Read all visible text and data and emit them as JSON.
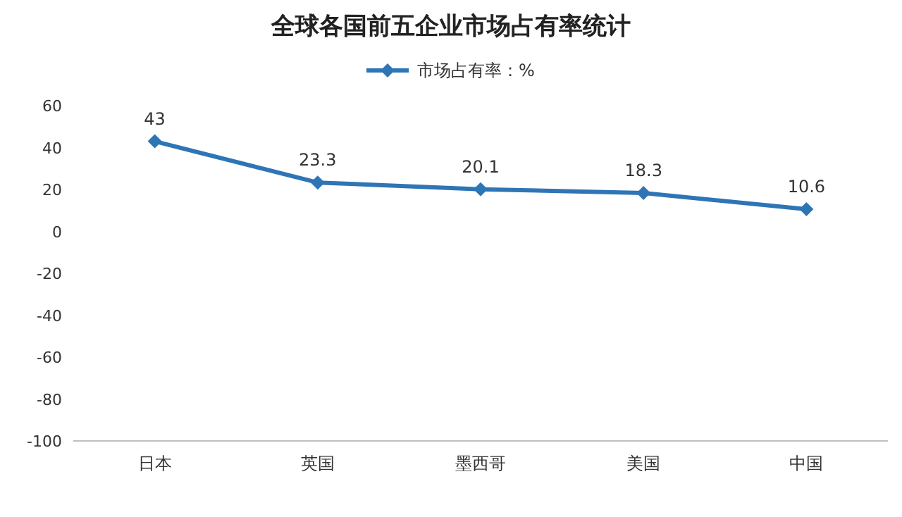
{
  "chart_data": {
    "type": "line",
    "title": "全球各国前五企业市场占有率统计",
    "categories": [
      "日本",
      "英国",
      "墨西哥",
      "美国",
      "中国"
    ],
    "series": [
      {
        "name": "市场占有率：%",
        "color": "#2e75b6",
        "values": [
          43,
          23.3,
          20.1,
          18.3,
          10.6
        ]
      }
    ],
    "ylim": [
      -100,
      60
    ],
    "yticks": [
      -100,
      -80,
      -60,
      -40,
      -20,
      0,
      20,
      40,
      60
    ],
    "marker": "diamond",
    "legend": "top",
    "data_labels": true
  }
}
